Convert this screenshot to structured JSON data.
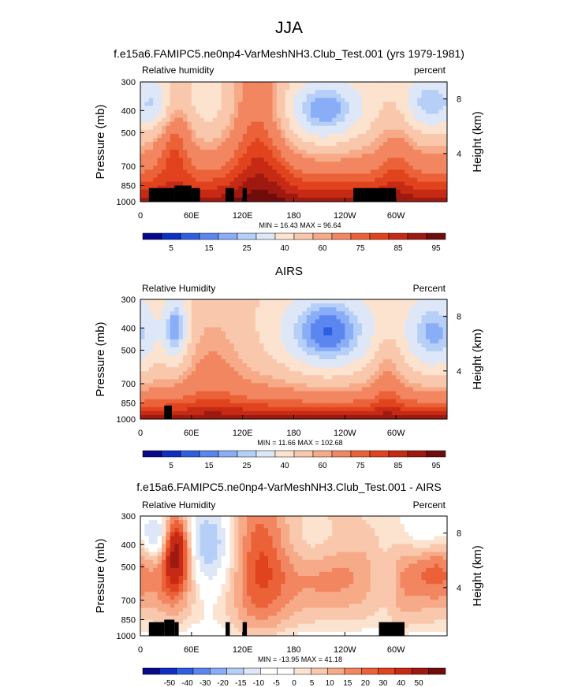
{
  "page_title": "JJA",
  "colors": {
    "scale_rh": [
      "#08088c",
      "#0f2ec2",
      "#2f5ee0",
      "#5b86ef",
      "#89adf7",
      "#b6cff9",
      "#dde7f7",
      "#fbe3d0",
      "#f9c8ac",
      "#f6aa88",
      "#f28660",
      "#ec6238",
      "#e0431e",
      "#c62a14",
      "#9e1910",
      "#700c0c"
    ],
    "scale_diff": [
      "#08088c",
      "#0f2ec2",
      "#2f5ee0",
      "#5b86ef",
      "#89adf7",
      "#b6cff9",
      "#dde7f7",
      "#ffffff",
      "#ffffff",
      "#fbe3d0",
      "#f9c8ac",
      "#f6aa88",
      "#f28660",
      "#ec6238",
      "#e0431e",
      "#c62a14",
      "#9e1910",
      "#700c0c"
    ],
    "terrain": "#000000"
  },
  "chart_data": [
    {
      "type": "heatmap",
      "title": "f.e15a6.FAMIPC5.ne0np4-VarMeshNH3.Club_Test.001 (yrs 1979-1981)",
      "left_label": "Relative humidity",
      "right_label": "percent",
      "ylabel": "Pressure (mb)",
      "right_ylabel": "Height (km)",
      "xlim": [
        0,
        360
      ],
      "x_ticks": [
        "0",
        "60E",
        "120E",
        "180",
        "120W",
        "60W"
      ],
      "y_ticks": [
        "300",
        "400",
        "500",
        "700",
        "850",
        "1000"
      ],
      "right_ticks": [
        "8",
        "4"
      ],
      "stats": "MIN =  16.43  MAX =  96.64",
      "colorbar_labels": [
        "5",
        "15",
        "25",
        "40",
        "60",
        "75",
        "85",
        "95"
      ],
      "scale": "rh",
      "terrain": [
        [
          10,
          40,
          872
        ],
        [
          40,
          60,
          850
        ],
        [
          60,
          70,
          872
        ],
        [
          100,
          110,
          872
        ],
        [
          120,
          125,
          872
        ],
        [
          250,
          260,
          872
        ],
        [
          260,
          290,
          872
        ],
        [
          290,
          300,
          872
        ]
      ]
    },
    {
      "type": "heatmap",
      "title": "AIRS",
      "left_label": "Relative Humidity",
      "right_label": "Percent",
      "ylabel": "Pressure (mb)",
      "right_ylabel": "Height (km)",
      "xlim": [
        0,
        360
      ],
      "x_ticks": [
        "0",
        "60E",
        "120E",
        "180",
        "120W",
        "60W"
      ],
      "y_ticks": [
        "300",
        "400",
        "500",
        "700",
        "850",
        "1000"
      ],
      "right_ticks": [
        "8",
        "4"
      ],
      "stats": "MIN =  11.66  MAX = 102.68",
      "colorbar_labels": [
        "5",
        "15",
        "25",
        "40",
        "60",
        "75",
        "85",
        "95"
      ],
      "scale": "rh",
      "terrain": [
        [
          28,
          37,
          872
        ]
      ]
    },
    {
      "type": "heatmap",
      "title": "f.e15a6.FAMIPC5.ne0np4-VarMeshNH3.Club_Test.001 - AIRS",
      "left_label": "Relative Humidity",
      "right_label": "Percent",
      "ylabel": "Pressure (mb)",
      "right_ylabel": "Height (km)",
      "xlim": [
        0,
        360
      ],
      "x_ticks": [
        "0",
        "60E",
        "120E",
        "180",
        "120W",
        "60W"
      ],
      "y_ticks": [
        "300",
        "400",
        "500",
        "700",
        "850",
        "1000"
      ],
      "right_ticks": [
        "8",
        "4"
      ],
      "stats": "MIN = -13.95  MAX =  41.18",
      "colorbar_labels": [
        "-50",
        "-40",
        "-30",
        "-20",
        "-15",
        "-10",
        "-5",
        "0",
        "5",
        "10",
        "15",
        "20",
        "30",
        "40",
        "50"
      ],
      "scale": "diff",
      "terrain": [
        [
          10,
          28,
          872
        ],
        [
          28,
          40,
          850
        ],
        [
          40,
          45,
          872
        ],
        [
          100,
          105,
          872
        ],
        [
          120,
          125,
          872
        ],
        [
          280,
          310,
          872
        ]
      ]
    }
  ]
}
